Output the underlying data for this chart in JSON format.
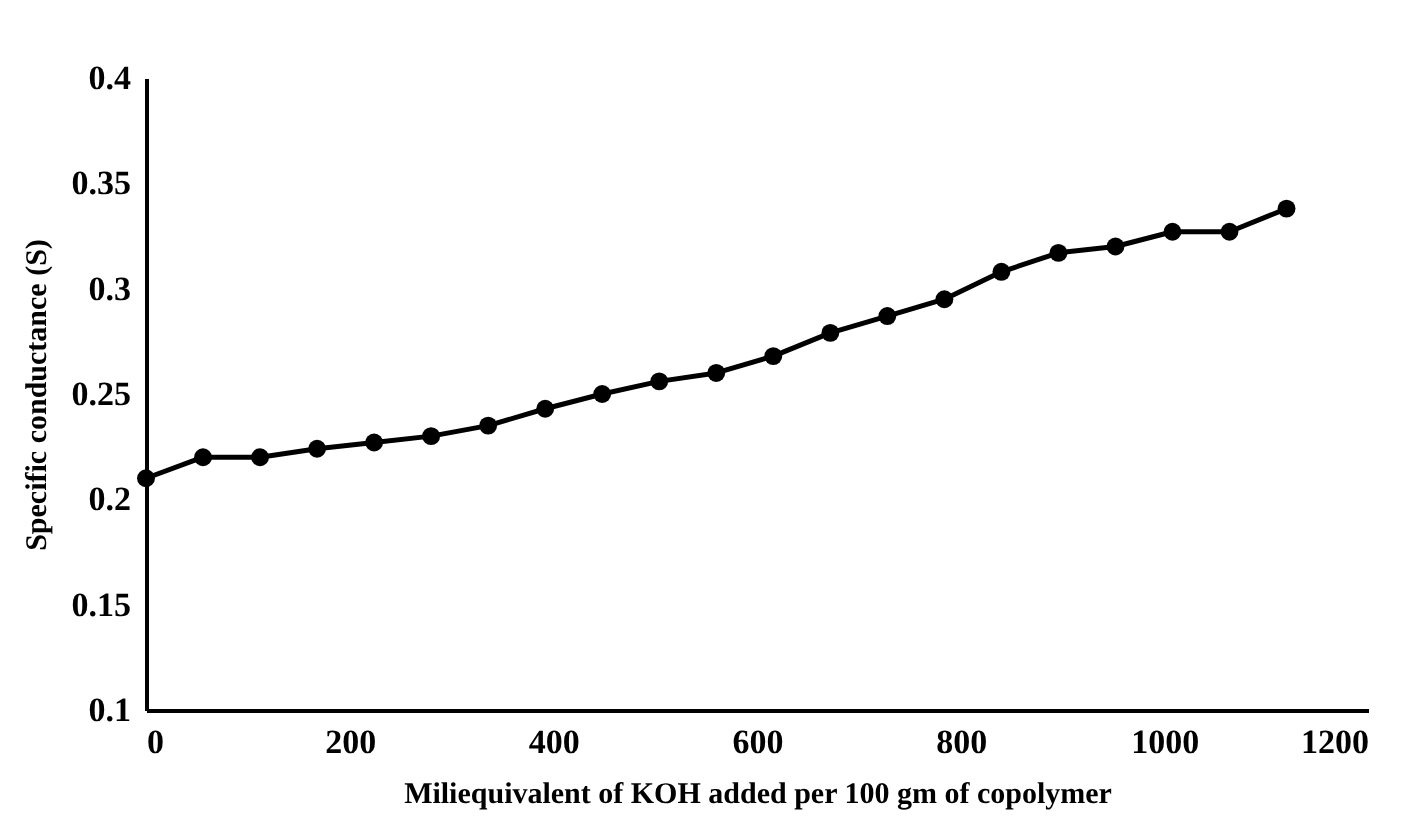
{
  "chart_data": {
    "type": "line",
    "xlabel": "Miliequivalent of KOH  added per 100 gm of copolymer",
    "ylabel": "Specific  conductance  (S)",
    "x": [
      0,
      56,
      112,
      168,
      224,
      280,
      336,
      392,
      448,
      504,
      560,
      616,
      672,
      728,
      784,
      840,
      896,
      952,
      1008,
      1064,
      1120
    ],
    "series": [
      {
        "color": "#000000",
        "values": [
          0.21,
          0.22,
          0.22,
          0.224,
          0.227,
          0.23,
          0.235,
          0.243,
          0.25,
          0.256,
          0.26,
          0.268,
          0.279,
          0.287,
          0.295,
          0.308,
          0.317,
          0.32,
          0.327,
          0.327,
          0.338
        ]
      }
    ],
    "xlim": [
      0,
      1200
    ],
    "xticks": [
      0,
      200,
      400,
      600,
      800,
      1000,
      1200
    ],
    "ylim": [
      0.1,
      0.4
    ],
    "yticks": [
      0.1,
      0.15,
      0.2,
      0.25,
      0.3,
      0.35,
      0.4
    ],
    "grid": false,
    "marker": "circle",
    "line_style": "solid"
  }
}
